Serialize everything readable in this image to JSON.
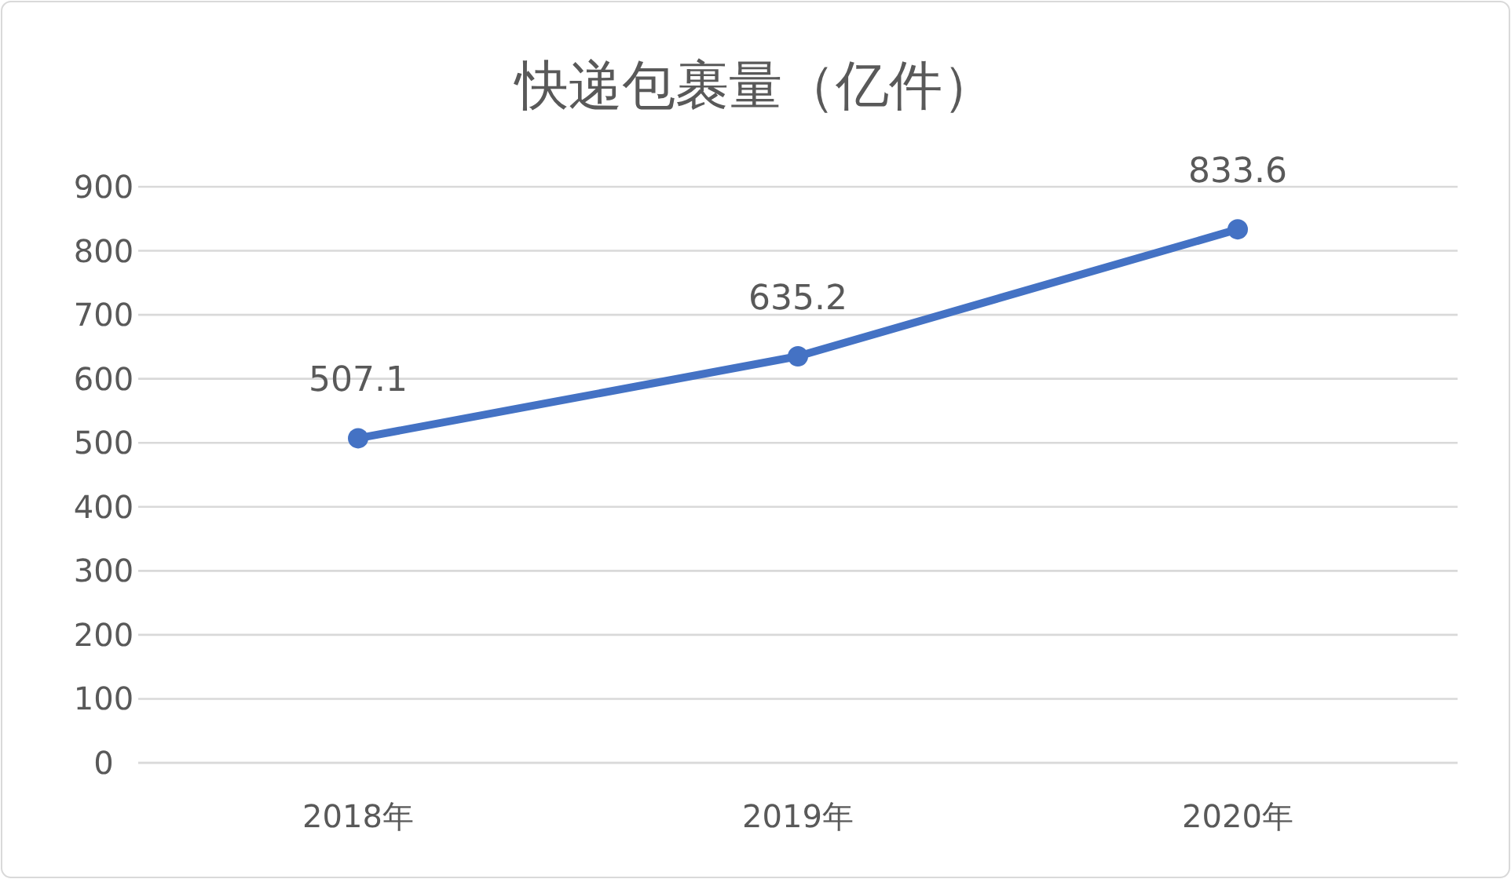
{
  "chart_data": {
    "type": "line",
    "title": "快递包裹量（亿件）",
    "categories": [
      "2018年",
      "2019年",
      "2020年"
    ],
    "series": [
      {
        "color": "#4472c4",
        "values": [
          507.1,
          635.2,
          833.6
        ]
      }
    ],
    "ylim": [
      0,
      900
    ],
    "yticks": [
      0,
      100,
      200,
      300,
      400,
      500,
      600,
      700,
      800,
      900
    ],
    "grid": "y",
    "marker": "circle",
    "line_style": "solid",
    "data_labels": true
  }
}
